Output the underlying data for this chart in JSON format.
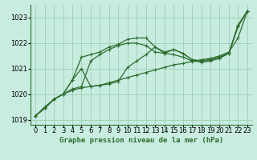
{
  "title": "Graphe pression niveau de la mer (hPa)",
  "background_color": "#c8ece0",
  "line_color": "#2d6e2d",
  "grid_color": "#9ecfb4",
  "xlim": [
    -0.5,
    23.5
  ],
  "ylim": [
    1018.8,
    1023.5
  ],
  "yticks": [
    1019,
    1020,
    1021,
    1022,
    1023
  ],
  "xticks": [
    0,
    1,
    2,
    3,
    4,
    5,
    6,
    7,
    8,
    9,
    10,
    11,
    12,
    13,
    14,
    15,
    16,
    17,
    18,
    19,
    20,
    21,
    22,
    23
  ],
  "series": [
    [
      1019.15,
      1019.45,
      1019.8,
      1020.0,
      1020.55,
      1021.45,
      1021.55,
      1021.65,
      1021.85,
      1021.95,
      1022.15,
      1022.2,
      1022.2,
      1021.85,
      1021.6,
      1021.75,
      1021.6,
      1021.35,
      1021.3,
      1021.35,
      1021.45,
      1021.6,
      1022.7,
      1023.25
    ],
    [
      1019.15,
      1019.45,
      1019.8,
      1020.0,
      1020.55,
      1021.0,
      1020.3,
      1020.35,
      1020.4,
      1020.5,
      1021.05,
      1021.3,
      1021.55,
      1021.85,
      1021.65,
      1021.75,
      1021.6,
      1021.35,
      1021.3,
      1021.35,
      1021.45,
      1021.6,
      1022.7,
      1023.25
    ],
    [
      1019.15,
      1019.45,
      1019.8,
      1020.0,
      1020.2,
      1020.3,
      1021.3,
      1021.55,
      1021.75,
      1021.9,
      1022.0,
      1022.0,
      1021.9,
      1021.65,
      1021.6,
      1021.55,
      1021.45,
      1021.3,
      1021.25,
      1021.3,
      1021.4,
      1021.6,
      1022.65,
      1023.25
    ],
    [
      1019.15,
      1019.5,
      1019.8,
      1020.0,
      1020.15,
      1020.25,
      1020.3,
      1020.35,
      1020.45,
      1020.55,
      1020.65,
      1020.75,
      1020.85,
      1020.95,
      1021.05,
      1021.15,
      1021.2,
      1021.28,
      1021.35,
      1021.4,
      1021.5,
      1021.65,
      1022.2,
      1023.25
    ]
  ],
  "marker": "+",
  "marker_size": 3,
  "linewidth": 0.9,
  "tick_labelsize": 6,
  "title_fontsize": 6.5
}
